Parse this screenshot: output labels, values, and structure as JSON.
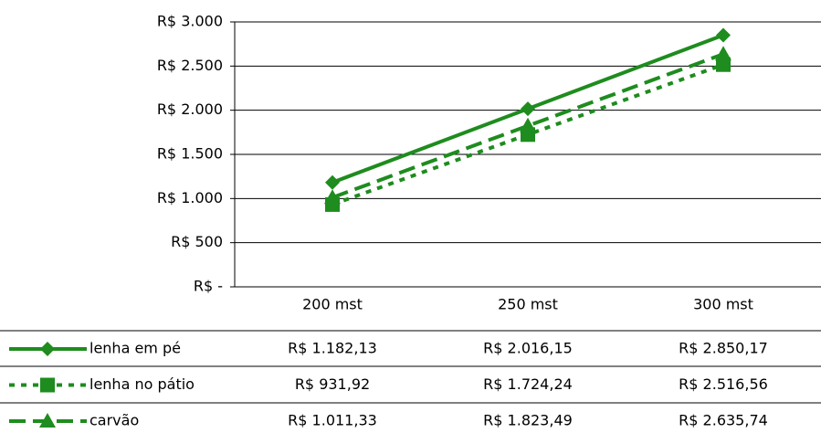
{
  "chart_data": {
    "type": "line",
    "categories": [
      "200 mst",
      "250 mst",
      "300 mst"
    ],
    "series": [
      {
        "name": "lenha em pé",
        "color": "#1e8c1e",
        "dash": "solid",
        "marker": "diamond",
        "values": [
          1182.13,
          2016.15,
          2850.17
        ],
        "value_labels": [
          "R$ 1.182,13",
          "R$ 2.016,15",
          "R$ 2.850,17"
        ]
      },
      {
        "name": "lenha no pátio",
        "color": "#1e8c1e",
        "dash": "dotted",
        "marker": "square",
        "values": [
          931.92,
          1724.24,
          2516.56
        ],
        "value_labels": [
          "R$ 931,92",
          "R$ 1.724,24",
          "R$ 2.516,56"
        ]
      },
      {
        "name": "carvão",
        "color": "#1e8c1e",
        "dash": "dashed",
        "marker": "triangle",
        "values": [
          1011.33,
          1823.49,
          2635.74
        ],
        "value_labels": [
          "R$ 1.011,33",
          "R$ 1.823,49",
          "R$ 2.635,74"
        ]
      }
    ],
    "ylim": [
      0,
      3000
    ],
    "yticks": [
      {
        "value": 0,
        "label": "R$ -"
      },
      {
        "value": 500,
        "label": "R$ 500"
      },
      {
        "value": 1000,
        "label": "R$ 1.000"
      },
      {
        "value": 1500,
        "label": "R$ 1.500"
      },
      {
        "value": 2000,
        "label": "R$ 2.000"
      },
      {
        "value": 2500,
        "label": "R$ 2.500"
      },
      {
        "value": 3000,
        "label": "R$ 3.000"
      }
    ],
    "grid": true,
    "data_table": true
  }
}
